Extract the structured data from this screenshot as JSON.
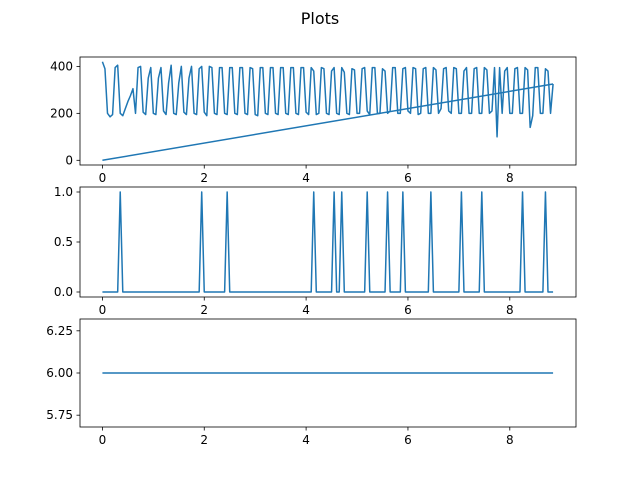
{
  "figure": {
    "title": "Plots"
  },
  "colors": {
    "line": "#1f77b4",
    "axes": "#000000",
    "background": "#ffffff"
  },
  "chart_data": [
    {
      "type": "line",
      "title": "",
      "xlabel": "",
      "ylabel": "",
      "xlim": [
        -0.44,
        9.3
      ],
      "ylim": [
        -20,
        440
      ],
      "xticks": [
        0,
        2,
        4,
        6,
        8
      ],
      "yticks": [
        0,
        200,
        400
      ],
      "grid": false,
      "series": [
        {
          "x": [
            0.0,
            0.05,
            0.1,
            0.15,
            0.2,
            0.25,
            0.3,
            0.35,
            0.4,
            0.45,
            0.5,
            0.55,
            0.6,
            0.65,
            0.7,
            0.75,
            0.8,
            0.85,
            0.9,
            0.95,
            1.0,
            1.05,
            1.1,
            1.15,
            1.2,
            1.25,
            1.3,
            1.35,
            1.4,
            1.45,
            1.5,
            1.55,
            1.6,
            1.65,
            1.7,
            1.75,
            1.8,
            1.85,
            1.9,
            1.95,
            2.0,
            2.05,
            2.1,
            2.15,
            2.2,
            2.25,
            2.3,
            2.35,
            2.4,
            2.45,
            2.5,
            2.55,
            2.6,
            2.65,
            2.7,
            2.75,
            2.8,
            2.85,
            2.9,
            2.95,
            3.0,
            3.05,
            3.1,
            3.15,
            3.2,
            3.25,
            3.3,
            3.35,
            3.4,
            3.45,
            3.5,
            3.55,
            3.6,
            3.65,
            3.7,
            3.75,
            3.8,
            3.85,
            3.9,
            3.95,
            4.0,
            4.05,
            4.1,
            4.15,
            4.2,
            4.25,
            4.3,
            4.35,
            4.4,
            4.45,
            4.5,
            4.55,
            4.6,
            4.65,
            4.7,
            4.75,
            4.8,
            4.85,
            4.9,
            4.95,
            5.0,
            5.05,
            5.1,
            5.15,
            5.2,
            5.25,
            5.3,
            5.35,
            5.4,
            5.45,
            5.5,
            5.55,
            5.6,
            5.65,
            5.7,
            5.75,
            5.8,
            5.85,
            5.9,
            5.95,
            6.0,
            6.05,
            6.1,
            6.15,
            6.2,
            6.25,
            6.3,
            6.35,
            6.4,
            6.45,
            6.5,
            6.55,
            6.6,
            6.65,
            6.7,
            6.75,
            6.8,
            6.85,
            6.9,
            6.95,
            7.0,
            7.05,
            7.1,
            7.15,
            7.2,
            7.25,
            7.3,
            7.35,
            7.4,
            7.45,
            7.5,
            7.55,
            7.6,
            7.65,
            7.7,
            7.75,
            7.8,
            7.85,
            7.9,
            7.95,
            8.0,
            8.05,
            8.1,
            8.15,
            8.2,
            8.25,
            8.3,
            8.35,
            8.4,
            8.45,
            8.5,
            8.55,
            8.6,
            8.65,
            8.7,
            8.75,
            8.8,
            8.85
          ],
          "y": [
            420,
            390,
            200,
            185,
            195,
            395,
            405,
            200,
            190,
            220,
            250,
            275,
            305,
            200,
            395,
            400,
            205,
            195,
            350,
            395,
            200,
            195,
            350,
            395,
            210,
            195,
            330,
            405,
            200,
            195,
            330,
            400,
            205,
            195,
            350,
            400,
            200,
            195,
            390,
            400,
            205,
            190,
            400,
            395,
            200,
            195,
            395,
            395,
            200,
            195,
            395,
            395,
            200,
            195,
            395,
            395,
            200,
            195,
            395,
            390,
            195,
            190,
            395,
            395,
            200,
            195,
            395,
            395,
            200,
            195,
            395,
            395,
            200,
            195,
            395,
            395,
            200,
            195,
            395,
            395,
            205,
            195,
            395,
            380,
            195,
            200,
            395,
            390,
            200,
            195,
            380,
            395,
            200,
            195,
            395,
            375,
            200,
            195,
            390,
            385,
            200,
            200,
            390,
            395,
            210,
            195,
            395,
            395,
            200,
            200,
            390,
            380,
            200,
            210,
            395,
            395,
            200,
            200,
            390,
            395,
            210,
            200,
            395,
            390,
            195,
            200,
            390,
            395,
            200,
            200,
            395,
            385,
            200,
            220,
            390,
            395,
            210,
            200,
            395,
            390,
            200,
            200,
            380,
            395,
            200,
            200,
            390,
            395,
            200,
            200,
            395,
            385,
            200,
            210,
            395,
            100,
            395,
            200,
            380,
            395,
            200,
            200,
            390,
            395,
            200,
            200,
            395,
            385,
            140,
            190,
            395,
            395,
            200,
            200,
            390,
            380,
            200,
            325
          ]
        },
        {
          "x": [
            0,
            8.85
          ],
          "y": [
            0,
            325
          ]
        }
      ]
    },
    {
      "type": "line",
      "title": "",
      "xlabel": "",
      "ylabel": "",
      "xlim": [
        -0.44,
        9.3
      ],
      "ylim": [
        -0.05,
        1.05
      ],
      "xticks": [
        0,
        2,
        4,
        6,
        8
      ],
      "yticks": [
        0.0,
        0.5,
        1.0
      ],
      "ytick_labels": [
        "0.0",
        "0.5",
        "1.0"
      ],
      "grid": false,
      "spike_width": 0.1,
      "spike_centers": [
        0.35,
        1.95,
        2.45,
        4.15,
        4.55,
        4.7,
        5.2,
        5.6,
        5.9,
        6.45,
        7.05,
        7.45,
        8.25,
        8.7
      ],
      "baseline": 0,
      "x_range": [
        0,
        8.85
      ]
    },
    {
      "type": "line",
      "title": "",
      "xlabel": "",
      "ylabel": "",
      "xlim": [
        -0.44,
        9.3
      ],
      "ylim": [
        5.68,
        6.32
      ],
      "xticks": [
        0,
        2,
        4,
        6,
        8
      ],
      "yticks": [
        5.75,
        6.0,
        6.25
      ],
      "ytick_labels": [
        "5.75",
        "6.00",
        "6.25"
      ],
      "grid": false,
      "series": [
        {
          "x": [
            0,
            8.85
          ],
          "y": [
            6,
            6
          ]
        }
      ]
    }
  ]
}
